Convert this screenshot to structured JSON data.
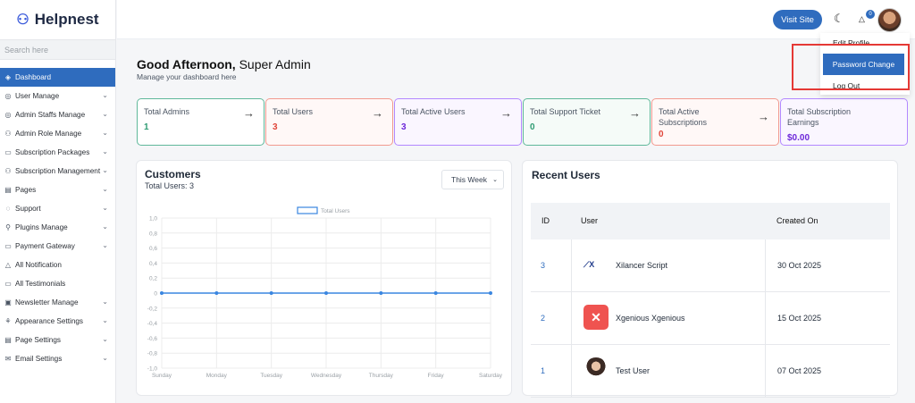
{
  "brand": {
    "name": "Helpnest",
    "accent": "#2f6cbe"
  },
  "search": {
    "placeholder": "Search here"
  },
  "sidebar": {
    "items": [
      {
        "label": "Dashboard",
        "icon": "dashboard-icon",
        "glyph": "◈",
        "active": true,
        "chevron": false
      },
      {
        "label": "User Manage",
        "icon": "user-icon",
        "glyph": "◎",
        "chevron": true
      },
      {
        "label": "Admin Staffs Manage",
        "icon": "admin-icon",
        "glyph": "◎",
        "chevron": true
      },
      {
        "label": "Admin Role Manage",
        "icon": "role-icon",
        "glyph": "⚇",
        "chevron": true
      },
      {
        "label": "Subscription Packages",
        "icon": "package-icon",
        "glyph": "▭",
        "chevron": true
      },
      {
        "label": "Subscription Management",
        "icon": "subscription-icon",
        "glyph": "⚇",
        "chevron": true
      },
      {
        "label": "Pages",
        "icon": "pages-icon",
        "glyph": "▤",
        "chevron": true
      },
      {
        "label": "Support",
        "icon": "support-icon",
        "glyph": "◌",
        "chevron": true
      },
      {
        "label": "Plugins Manage",
        "icon": "plugin-icon",
        "glyph": "⚲",
        "chevron": true
      },
      {
        "label": "Payment Gateway",
        "icon": "payment-icon",
        "glyph": "▭",
        "chevron": true
      },
      {
        "label": "All Notification",
        "icon": "bell-icon",
        "glyph": "△",
        "chevron": false
      },
      {
        "label": "All Testimonials",
        "icon": "testimonial-icon",
        "glyph": "▭",
        "chevron": false
      },
      {
        "label": "Newsletter Manage",
        "icon": "newsletter-icon",
        "glyph": "▣",
        "chevron": true
      },
      {
        "label": "Appearance Settings",
        "icon": "appearance-icon",
        "glyph": "⚘",
        "chevron": true
      },
      {
        "label": "Page Settings",
        "icon": "page-settings-icon",
        "glyph": "▤",
        "chevron": true
      },
      {
        "label": "Email Settings",
        "icon": "email-icon",
        "glyph": "✉",
        "chevron": true
      }
    ]
  },
  "topbar": {
    "visit_label": "Visit Site",
    "notif_count": "0"
  },
  "dropdown": {
    "edit": "Edit Profile",
    "password": "Password Change",
    "logout": "Log Out"
  },
  "greeting": {
    "time": "Good Afternoon,",
    "name": "Super Admin",
    "sub": "Manage your dashboard here"
  },
  "cards": [
    {
      "label": "Total Admins",
      "value": "1",
      "arrow": "→",
      "color": "#5fb89a",
      "bg": "#ffffff",
      "vcolor": "#2e9b72"
    },
    {
      "label": "Total Users",
      "value": "3",
      "arrow": "→",
      "color": "#f29a8f",
      "bg": "#fff8f7",
      "vcolor": "#e0463a"
    },
    {
      "label": "Total Active Users",
      "value": "3",
      "arrow": "→",
      "color": "#b388ff",
      "bg": "#faf6ff",
      "vcolor": "#6d28d9"
    },
    {
      "label": "Total Support Ticket",
      "value": "0",
      "arrow": "→",
      "color": "#5fb89a",
      "bg": "#f5fbf8",
      "vcolor": "#2e9b72"
    },
    {
      "label": "Total Active Subscriptions",
      "value": "0",
      "arrow": "→",
      "color": "#f29a8f",
      "bg": "#fff8f7",
      "vcolor": "#e0463a"
    },
    {
      "label": "Total Subscription Earnings",
      "value": "$0.00",
      "arrow": "",
      "color": "#b388ff",
      "bg": "#faf6ff",
      "vcolor": "#6d28d9"
    }
  ],
  "customers": {
    "title": "Customers",
    "sub": "Total Users: 3",
    "filter": "This Week"
  },
  "chart_data": {
    "type": "line",
    "categories": [
      "Sunday",
      "Monday",
      "Tuesday",
      "Wednesday",
      "Thursday",
      "Friday",
      "Saturday"
    ],
    "series": [
      {
        "name": "Total Users",
        "values": [
          0,
          0,
          0,
          0,
          0,
          0,
          0
        ],
        "color": "#3a86e0"
      }
    ],
    "yticks": [
      "1,0",
      "0,8",
      "0,6",
      "0,4",
      "0,2",
      "0",
      "-0,2",
      "-0,4",
      "-0,6",
      "-0,8",
      "-1,0"
    ],
    "ylim": [
      -1,
      1
    ],
    "grid": true,
    "legend": "top"
  },
  "recent": {
    "title": "Recent Users",
    "headers": [
      "ID",
      "User",
      "Created On"
    ],
    "rows": [
      {
        "id": "3",
        "name": "Xilancer Script",
        "date": "30 Oct 2025",
        "avatar": "xilancer-logo"
      },
      {
        "id": "2",
        "name": "Xgenious Xgenious",
        "date": "15 Oct 2025",
        "avatar": "xgenious-logo"
      },
      {
        "id": "1",
        "name": "Test User",
        "date": "07 Oct 2025",
        "avatar": "user-photo"
      }
    ]
  }
}
